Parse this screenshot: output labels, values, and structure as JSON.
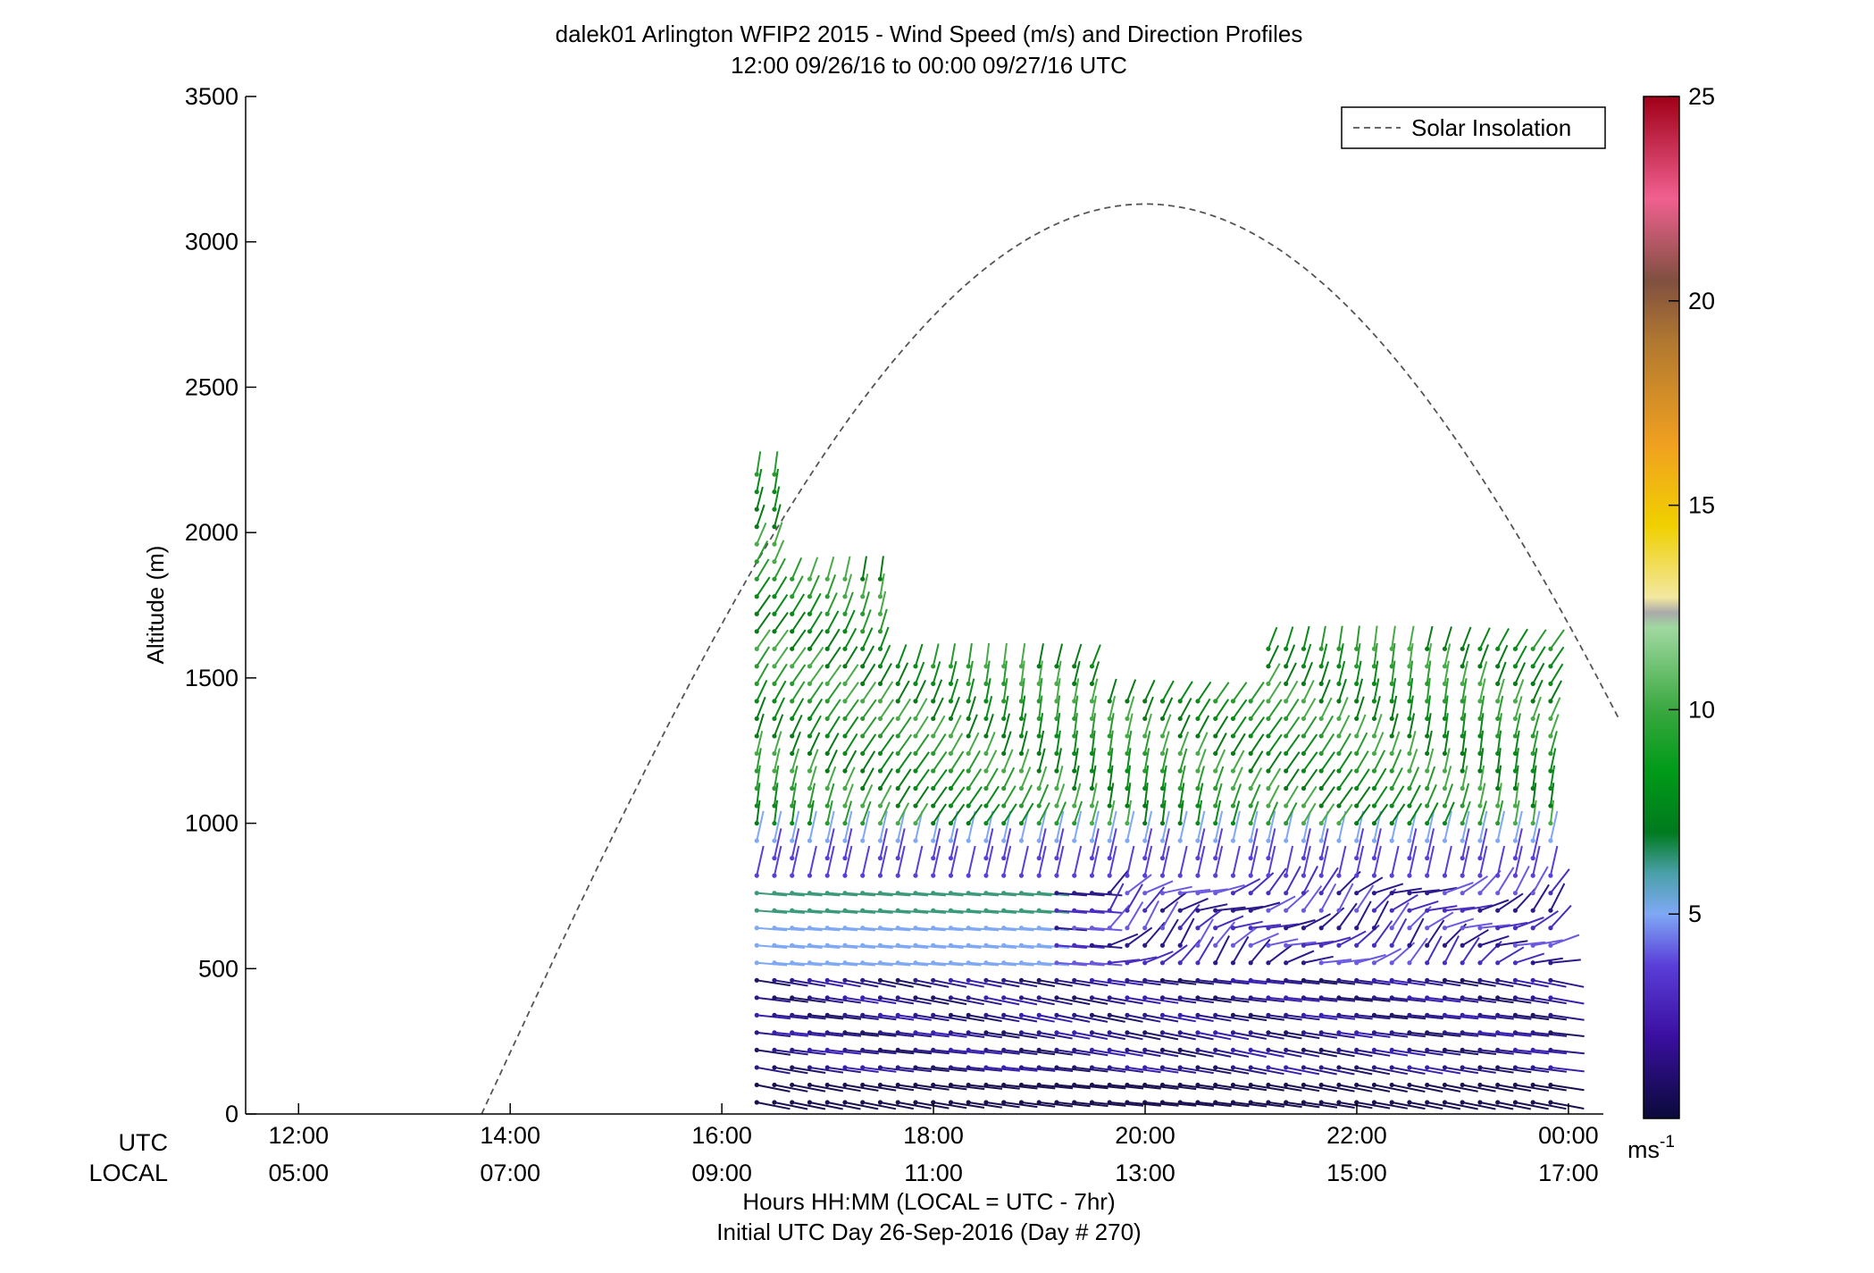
{
  "chart_data": {
    "type": "wind-barb-profile",
    "title": "dalek01 Arlington WFIP2 2015 - Wind Speed (m/s) and Direction Profiles",
    "subtitle": "12:00 09/26/16 to 00:00 09/27/16  UTC",
    "ylabel": "Altitude (m)",
    "xlabel_1": "Hours HH:MM  (LOCAL = UTC - 7hr)",
    "xlabel_2": "Initial UTC Day 26-Sep-2016 (Day # 270)",
    "row_label_utc": "UTC",
    "row_label_local": "LOCAL",
    "ylim": [
      0,
      3500
    ],
    "yticks": [
      0,
      500,
      1000,
      1500,
      2000,
      2500,
      3000,
      3500
    ],
    "ytick_labels": [
      "0",
      "500",
      "1000",
      "1500",
      "2000",
      "2500",
      "3000",
      "3500"
    ],
    "xlim_hours": [
      11.5,
      24.33
    ],
    "xticks_hours": [
      12,
      14,
      16,
      18,
      20,
      22,
      24
    ],
    "xtick_labels_utc": [
      "12:00",
      "14:00",
      "16:00",
      "18:00",
      "20:00",
      "22:00",
      "00:00"
    ],
    "xtick_labels_local": [
      "05:00",
      "07:00",
      "09:00",
      "11:00",
      "13:00",
      "15:00",
      "17:00"
    ],
    "legend": {
      "label": "Solar Insolation",
      "position": "top-right"
    },
    "solar_insolation_curve": {
      "start_hour": 13.73,
      "peak_hour": 20.0,
      "peak_altitude": 3130,
      "end_hour": 24.5,
      "end_altitude": 1330
    },
    "colorbar": {
      "range": [
        0,
        25
      ],
      "ticks": [
        5,
        10,
        15,
        20,
        25
      ],
      "tick_labels": [
        "5",
        "10",
        "15",
        "20",
        "25"
      ],
      "unit": "ms",
      "unit_exp": "-1"
    },
    "profiles": {
      "start_hour": 16.33,
      "end_hour": 23.9,
      "interval_hours": 0.1667,
      "level_spacing_m": 30,
      "low_band_top_m": 500,
      "jet_band_m": [
        520,
        800
      ],
      "upper_band_m": [
        1000,
        1650
      ]
    }
  }
}
